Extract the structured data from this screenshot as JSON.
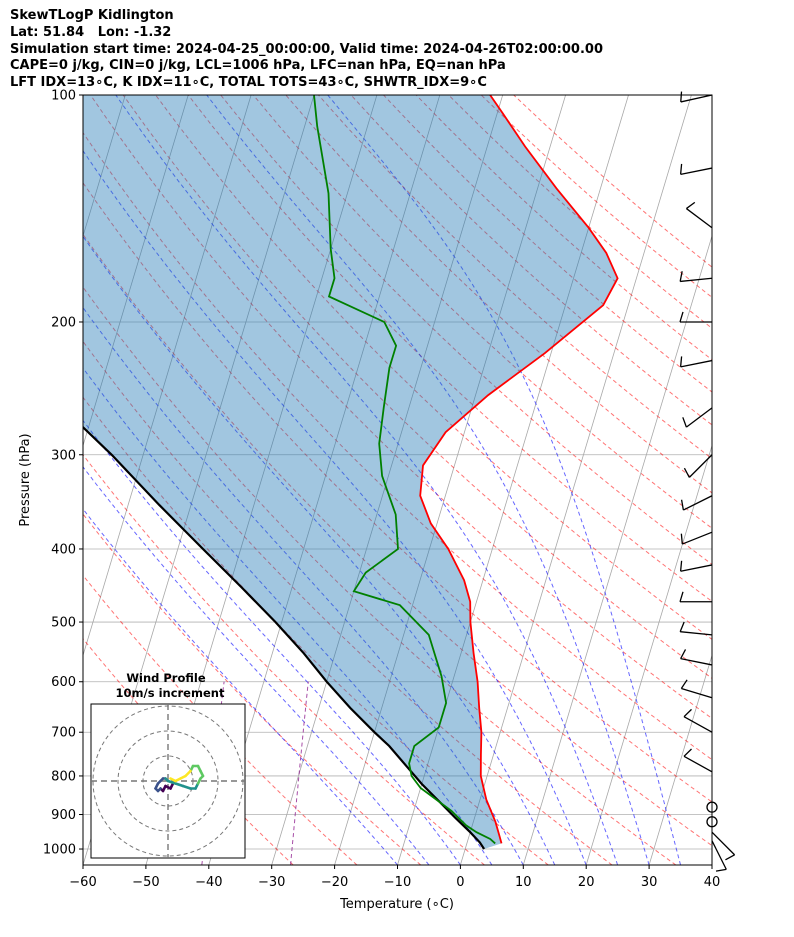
{
  "header": {
    "line1": "SkewTLogP Kidlington",
    "line2": "Lat: 51.84   Lon: -1.32",
    "line3": "Simulation start time: 2024-04-25_00:00:00, Valid time: 2024-04-26T02:00:00.00",
    "line4": "CAPE=0 j/kg, CIN=0 j/kg, LCL=1006 hPa, LFC=nan hPa, EQ=nan hPa",
    "line5": "LFT IDX=13∘C, K IDX=11∘C, TOTAL TOTS=43∘C, SHWTR_IDX=9∘C"
  },
  "chart_data": {
    "type": "line",
    "subtype": "skew-T log-p",
    "xlabel": "Temperature (∘C)",
    "ylabel": "Pressure (hPa)",
    "xlim": [
      -60,
      40
    ],
    "ylim": [
      1050,
      100
    ],
    "y_scale": "log",
    "x_ticks": [
      -60,
      -50,
      -40,
      -30,
      -20,
      -10,
      0,
      10,
      20,
      30,
      40
    ],
    "y_ticks": [
      100,
      200,
      300,
      400,
      500,
      600,
      700,
      800,
      900,
      1000
    ],
    "grid": true,
    "colors": {
      "temperature": "#ff0000",
      "dewpoint": "#008000",
      "parcel": "#000000",
      "cape_fill": "#1f77b4",
      "dry_adiabat": "#ff0000",
      "moist_adiabat": "#0000ff",
      "mixing_ratio": "#800080",
      "isotherm": "#808080"
    },
    "series": [
      {
        "key": "temperature",
        "points": [
          [
            5.5,
            983
          ],
          [
            4.8,
            960
          ],
          [
            3.5,
            920
          ],
          [
            1,
            860
          ],
          [
            -1,
            800
          ],
          [
            -2,
            750
          ],
          [
            -3,
            700
          ],
          [
            -4.5,
            650
          ],
          [
            -6,
            600
          ],
          [
            -8,
            550
          ],
          [
            -10,
            500
          ],
          [
            -11,
            470
          ],
          [
            -13,
            440
          ],
          [
            -17,
            400
          ],
          [
            -21,
            370
          ],
          [
            -24,
            340
          ],
          [
            -25,
            310
          ],
          [
            -23,
            280
          ],
          [
            -18,
            250
          ],
          [
            -11,
            220
          ],
          [
            -4,
            190
          ],
          [
            -3,
            175
          ],
          [
            -6,
            162
          ],
          [
            -10,
            150
          ],
          [
            -17,
            133
          ],
          [
            -24,
            117
          ],
          [
            -29,
            106
          ],
          [
            -32,
            100
          ]
        ]
      },
      {
        "key": "dewpoint",
        "points": [
          [
            4.5,
            983
          ],
          [
            3.5,
            970
          ],
          [
            1,
            950
          ],
          [
            -1,
            930
          ],
          [
            -4,
            890
          ],
          [
            -10,
            830
          ],
          [
            -12,
            800
          ],
          [
            -13,
            770
          ],
          [
            -13,
            730
          ],
          [
            -10,
            690
          ],
          [
            -10,
            640
          ],
          [
            -12,
            590
          ],
          [
            -16,
            520
          ],
          [
            -22,
            475
          ],
          [
            -30,
            455
          ],
          [
            -29,
            430
          ],
          [
            -25,
            400
          ],
          [
            -27,
            360
          ],
          [
            -31,
            320
          ],
          [
            -33,
            290
          ],
          [
            -34,
            260
          ],
          [
            -35,
            230
          ],
          [
            -35,
            215
          ],
          [
            -38,
            200
          ],
          [
            -48,
            185
          ],
          [
            -48,
            175
          ],
          [
            -50,
            160
          ],
          [
            -53,
            135
          ],
          [
            -58,
            110
          ],
          [
            -60,
            100
          ]
        ]
      },
      {
        "key": "parcel",
        "points": [
          [
            3,
            1000
          ],
          [
            2,
            980
          ],
          [
            0,
            950
          ],
          [
            -3,
            910
          ],
          [
            -6,
            870
          ],
          [
            -10,
            820
          ],
          [
            -13,
            780
          ],
          [
            -17,
            730
          ],
          [
            -20,
            700
          ],
          [
            -25,
            650
          ],
          [
            -30,
            600
          ],
          [
            -35,
            550
          ],
          [
            -41,
            500
          ],
          [
            -48,
            450
          ],
          [
            -56,
            400
          ],
          [
            -65,
            350
          ],
          [
            -75,
            300
          ],
          [
            -85,
            260
          ],
          [
            -97,
            220
          ],
          [
            -108,
            190
          ],
          [
            -120,
            160
          ],
          [
            -135,
            130
          ],
          [
            -150,
            110
          ],
          [
            -158,
            100
          ]
        ]
      }
    ],
    "wind_barbs": [
      {
        "p": 100,
        "u": 9,
        "v": 2,
        "spd": 10
      },
      {
        "p": 125,
        "u": 10,
        "v": 2,
        "spd": 10
      },
      {
        "p": 150,
        "u": 8,
        "v": -6,
        "spd": 10
      },
      {
        "p": 175,
        "u": 10,
        "v": 1,
        "spd": 10
      },
      {
        "p": 200,
        "u": 10,
        "v": 0,
        "spd": 10
      },
      {
        "p": 225,
        "u": 10,
        "v": 2,
        "spd": 10
      },
      {
        "p": 260,
        "u": 8,
        "v": 6,
        "spd": 10
      },
      {
        "p": 300,
        "u": 7,
        "v": 7,
        "spd": 10
      },
      {
        "p": 340,
        "u": 10,
        "v": 5,
        "spd": 10
      },
      {
        "p": 380,
        "u": 10,
        "v": 4,
        "spd": 10
      },
      {
        "p": 420,
        "u": 10,
        "v": 2,
        "spd": 10
      },
      {
        "p": 470,
        "u": 10,
        "v": 0,
        "spd": 10
      },
      {
        "p": 520,
        "u": 10,
        "v": -1,
        "spd": 10
      },
      {
        "p": 570,
        "u": 10,
        "v": -2,
        "spd": 10
      },
      {
        "p": 630,
        "u": 10,
        "v": -3,
        "spd": 10
      },
      {
        "p": 700,
        "u": 9,
        "v": -5,
        "spd": 10
      },
      {
        "p": 790,
        "u": 9,
        "v": -5,
        "spd": 10
      },
      {
        "p": 880,
        "u": 0,
        "v": 0,
        "spd": 0
      },
      {
        "p": 920,
        "u": 0,
        "v": 0,
        "spd": 0
      },
      {
        "p": 950,
        "u": -6,
        "v": 6,
        "spd": 10
      },
      {
        "p": 975,
        "u": -4,
        "v": 8,
        "spd": 10
      }
    ],
    "hodograph": {
      "title": "Wind Profile",
      "subtitle": "10m/s increment",
      "rings": [
        10,
        20,
        30
      ],
      "path": [
        [
          2,
          -1
        ],
        [
          1,
          -3
        ],
        [
          -1,
          -2
        ],
        [
          -2,
          -4
        ],
        [
          -3,
          -3
        ],
        [
          -4,
          -4
        ],
        [
          -5,
          -3
        ],
        [
          -4,
          -1
        ],
        [
          -3,
          0
        ],
        [
          -2,
          1
        ],
        [
          -1,
          1
        ],
        [
          0,
          0
        ],
        [
          3,
          -1
        ],
        [
          6,
          -2
        ],
        [
          9,
          -3
        ],
        [
          11,
          -3
        ],
        [
          12,
          -1
        ],
        [
          13,
          1
        ],
        [
          14,
          2
        ],
        [
          13,
          4
        ],
        [
          12,
          6
        ],
        [
          10,
          6
        ],
        [
          9,
          4
        ],
        [
          7,
          2
        ],
        [
          5,
          1
        ],
        [
          3,
          0
        ],
        [
          1,
          1
        ]
      ]
    }
  }
}
